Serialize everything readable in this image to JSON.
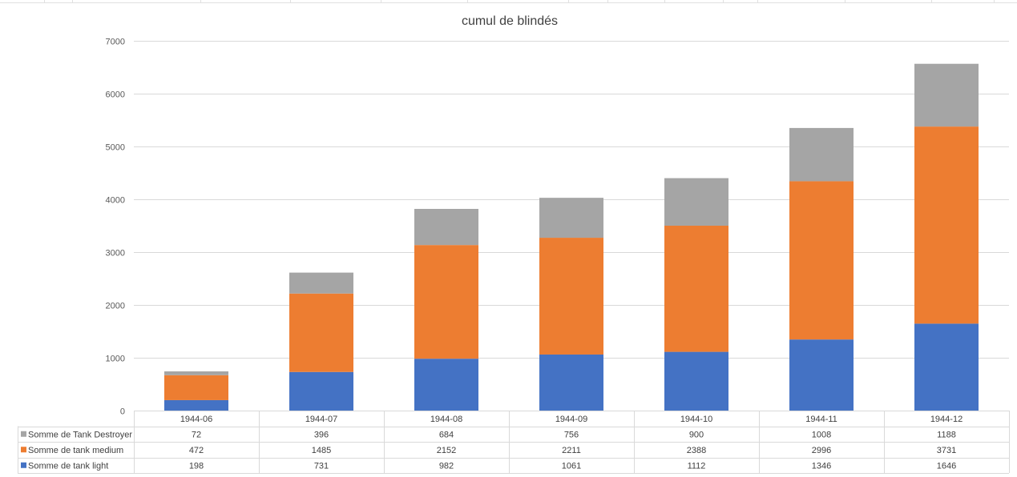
{
  "chart_data": {
    "type": "bar",
    "stacked": true,
    "title": "cumul de blindés",
    "categories": [
      "1944-06",
      "1944-07",
      "1944-08",
      "1944-09",
      "1944-10",
      "1944-11",
      "1944-12"
    ],
    "series": [
      {
        "name": "Somme de tank light",
        "color": "#4472c4",
        "values": [
          198,
          731,
          982,
          1061,
          1112,
          1346,
          1646
        ]
      },
      {
        "name": "Somme de tank medium",
        "color": "#ed7d31",
        "values": [
          472,
          1485,
          2152,
          2211,
          2388,
          2996,
          3731
        ]
      },
      {
        "name": "Somme de Tank Destroyer",
        "color": "#a5a5a5",
        "values": [
          72,
          396,
          684,
          756,
          900,
          1008,
          1188
        ]
      }
    ],
    "ylim": [
      0,
      7000
    ],
    "yticks": [
      0,
      1000,
      2000,
      3000,
      4000,
      5000,
      6000,
      7000
    ],
    "grid": true,
    "legend": "data-table",
    "table_row_order": [
      "Somme de Tank Destroyer",
      "Somme de tank medium",
      "Somme de tank light"
    ]
  }
}
